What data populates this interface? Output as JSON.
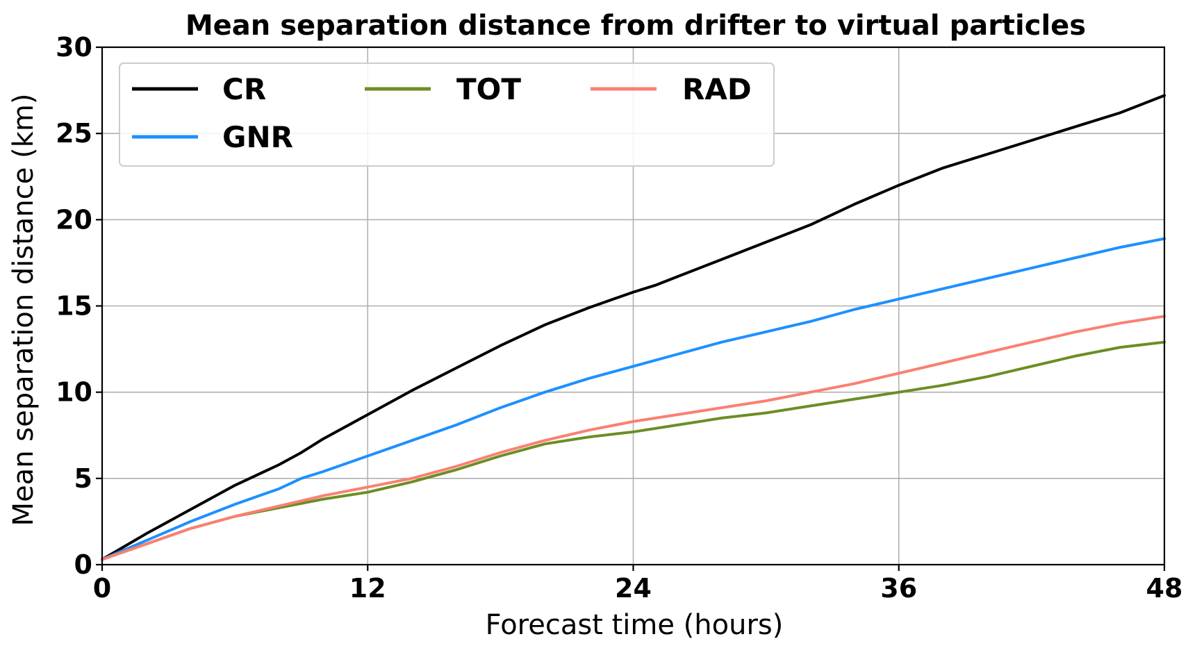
{
  "chart_data": {
    "type": "line",
    "title": "Mean separation distance from drifter to virtual particles",
    "xlabel": "Forecast time (hours)",
    "ylabel": "Mean separation distance (km)",
    "xlim": [
      0,
      48
    ],
    "ylim": [
      0,
      30
    ],
    "xticks": [
      0,
      12,
      24,
      36,
      48
    ],
    "yticks": [
      0,
      5,
      10,
      15,
      20,
      25,
      30
    ],
    "grid": true,
    "legend_position": "top-left",
    "legend_columns": 3,
    "series": [
      {
        "name": "CR",
        "color": "#000000",
        "x": [
          0,
          2,
          4,
          6,
          8,
          9,
          10,
          12,
          14,
          16,
          18,
          20,
          22,
          24,
          25,
          26,
          28,
          30,
          32,
          33,
          34,
          36,
          38,
          40,
          42,
          44,
          46,
          48
        ],
        "y": [
          0.3,
          1.8,
          3.2,
          4.6,
          5.8,
          6.5,
          7.3,
          8.7,
          10.1,
          11.4,
          12.7,
          13.9,
          14.9,
          15.8,
          16.2,
          16.7,
          17.7,
          18.7,
          19.7,
          20.3,
          20.9,
          22.0,
          23.0,
          23.8,
          24.6,
          25.4,
          26.2,
          27.2
        ]
      },
      {
        "name": "GNR",
        "color": "#1e90ff",
        "x": [
          0,
          2,
          4,
          6,
          8,
          9,
          10,
          12,
          14,
          16,
          18,
          20,
          22,
          24,
          26,
          28,
          30,
          32,
          34,
          36,
          38,
          40,
          42,
          44,
          46,
          48
        ],
        "y": [
          0.3,
          1.4,
          2.5,
          3.5,
          4.4,
          5.0,
          5.4,
          6.3,
          7.2,
          8.1,
          9.1,
          10.0,
          10.8,
          11.5,
          12.2,
          12.9,
          13.5,
          14.1,
          14.8,
          15.4,
          16.0,
          16.6,
          17.2,
          17.8,
          18.4,
          18.9
        ]
      },
      {
        "name": "TOT",
        "color": "#6b8e23",
        "x": [
          0,
          2,
          4,
          6,
          8,
          10,
          12,
          14,
          16,
          18,
          20,
          22,
          24,
          26,
          28,
          30,
          32,
          34,
          36,
          38,
          40,
          42,
          44,
          46,
          48
        ],
        "y": [
          0.3,
          1.2,
          2.1,
          2.8,
          3.3,
          3.8,
          4.2,
          4.8,
          5.5,
          6.3,
          7.0,
          7.4,
          7.7,
          8.1,
          8.5,
          8.8,
          9.2,
          9.6,
          10.0,
          10.4,
          10.9,
          11.5,
          12.1,
          12.6,
          12.9
        ]
      },
      {
        "name": "RAD",
        "color": "#fa8072",
        "x": [
          0,
          2,
          4,
          6,
          8,
          10,
          12,
          14,
          16,
          18,
          20,
          22,
          24,
          26,
          28,
          30,
          32,
          34,
          36,
          38,
          40,
          42,
          44,
          46,
          48
        ],
        "y": [
          0.3,
          1.2,
          2.1,
          2.8,
          3.4,
          4.0,
          4.5,
          5.0,
          5.7,
          6.5,
          7.2,
          7.8,
          8.3,
          8.7,
          9.1,
          9.5,
          10.0,
          10.5,
          11.1,
          11.7,
          12.3,
          12.9,
          13.5,
          14.0,
          14.4
        ]
      }
    ]
  }
}
